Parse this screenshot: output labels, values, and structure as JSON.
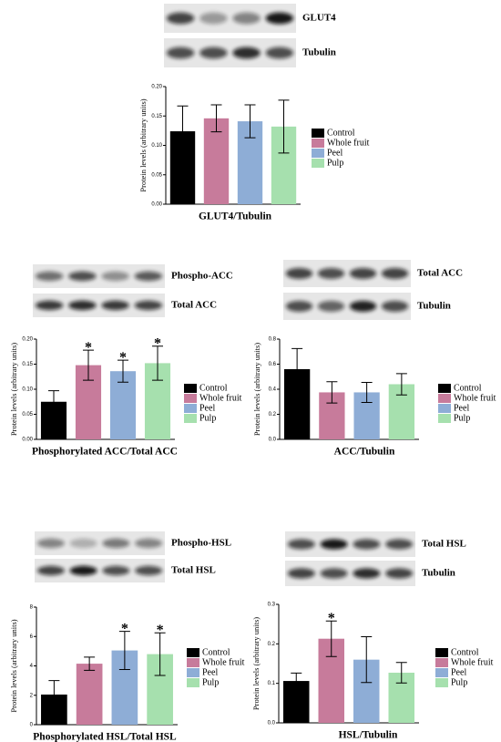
{
  "chart_data": [
    {
      "type": "bar",
      "xlabel": "GLUT4/Tubulin",
      "ylabel": "Protein levels (arbitrary units)",
      "blot_labels": [
        "GLUT4",
        "Tubulin"
      ],
      "categories": [
        "Control",
        "Whole fruit",
        "Peel",
        "Pulp"
      ],
      "colors": [
        "#000000",
        "#c77b9b",
        "#8eadd6",
        "#a6e0ae"
      ],
      "values": [
        0.124,
        0.146,
        0.141,
        0.132
      ],
      "errors": [
        0.043,
        0.023,
        0.028,
        0.045
      ],
      "stars": [
        null,
        null,
        null,
        null
      ],
      "ylim": [
        0,
        0.2
      ],
      "yticks": [
        {
          "value": 0,
          "label": "0.00"
        },
        0.05,
        {
          "value": 0.1,
          "label": "0.10"
        },
        0.15,
        {
          "value": 0.2,
          "label": "0.20"
        }
      ]
    },
    {
      "type": "bar",
      "xlabel": "Phosphorylated ACC/Total ACC",
      "ylabel": "Protein levels (arbitrary units)",
      "blot_labels": [
        "Phospho-ACC",
        "Total ACC"
      ],
      "categories": [
        "Control",
        "Whole fruit",
        "Peel",
        "Pulp"
      ],
      "colors": [
        "#000000",
        "#c77b9b",
        "#8eadd6",
        "#a6e0ae"
      ],
      "values": [
        0.075,
        0.148,
        0.136,
        0.152
      ],
      "errors": [
        0.022,
        0.03,
        0.022,
        0.034
      ],
      "stars": [
        null,
        "*",
        "*",
        "*"
      ],
      "ylim": [
        0,
        0.2
      ],
      "yticks": [
        {
          "value": 0,
          "label": "0.00"
        },
        0.05,
        {
          "value": 0.1,
          "label": "0.10"
        },
        0.15,
        {
          "value": 0.2,
          "label": "0.20"
        }
      ]
    },
    {
      "type": "bar",
      "xlabel": "ACC/Tubulin",
      "ylabel": "Protein levels (arbitrary units)",
      "blot_labels": [
        "Total ACC",
        "Tubulin"
      ],
      "categories": [
        "Control",
        "Whole fruit",
        "Peel",
        "Pulp"
      ],
      "colors": [
        "#000000",
        "#c77b9b",
        "#8eadd6",
        "#a6e0ae"
      ],
      "values": [
        0.56,
        0.375,
        0.375,
        0.44
      ],
      "errors": [
        0.165,
        0.085,
        0.08,
        0.085
      ],
      "stars": [
        null,
        null,
        null,
        null
      ],
      "ylim": [
        0,
        0.8
      ],
      "yticks": [
        {
          "value": 0,
          "label": "0.0"
        },
        0.2,
        0.4,
        0.6,
        0.8
      ]
    },
    {
      "type": "bar",
      "xlabel": "Phosphorylated HSL/Total HSL",
      "ylabel": "Protein levels (arbitrary units)",
      "blot_labels": [
        "Phospho-HSL",
        "Total HSL"
      ],
      "categories": [
        "Control",
        "Whole fruit",
        "Peel",
        "Pulp"
      ],
      "colors": [
        "#000000",
        "#c77b9b",
        "#8eadd6",
        "#a6e0ae"
      ],
      "values": [
        2.05,
        4.15,
        5.05,
        4.8
      ],
      "errors": [
        0.95,
        0.45,
        1.3,
        1.45
      ],
      "stars": [
        null,
        null,
        "*",
        "*"
      ],
      "ylim": [
        0,
        8
      ],
      "yticks": [
        0,
        2,
        4,
        6,
        8
      ]
    },
    {
      "type": "bar",
      "xlabel": "HSL/Tubulin",
      "ylabel": "Protein levels (arbitrary units)",
      "blot_labels": [
        "Total HSL",
        "Tubulin"
      ],
      "categories": [
        "Control",
        "Whole fruit",
        "Peel",
        "Pulp"
      ],
      "colors": [
        "#000000",
        "#c77b9b",
        "#8eadd6",
        "#a6e0ae"
      ],
      "values": [
        0.106,
        0.213,
        0.16,
        0.127
      ],
      "errors": [
        0.02,
        0.045,
        0.058,
        0.026
      ],
      "stars": [
        null,
        "*",
        null,
        null
      ],
      "ylim": [
        0,
        0.3
      ],
      "yticks": [
        {
          "value": 0,
          "label": "0.0"
        },
        0.1,
        0.2,
        0.3
      ]
    }
  ]
}
